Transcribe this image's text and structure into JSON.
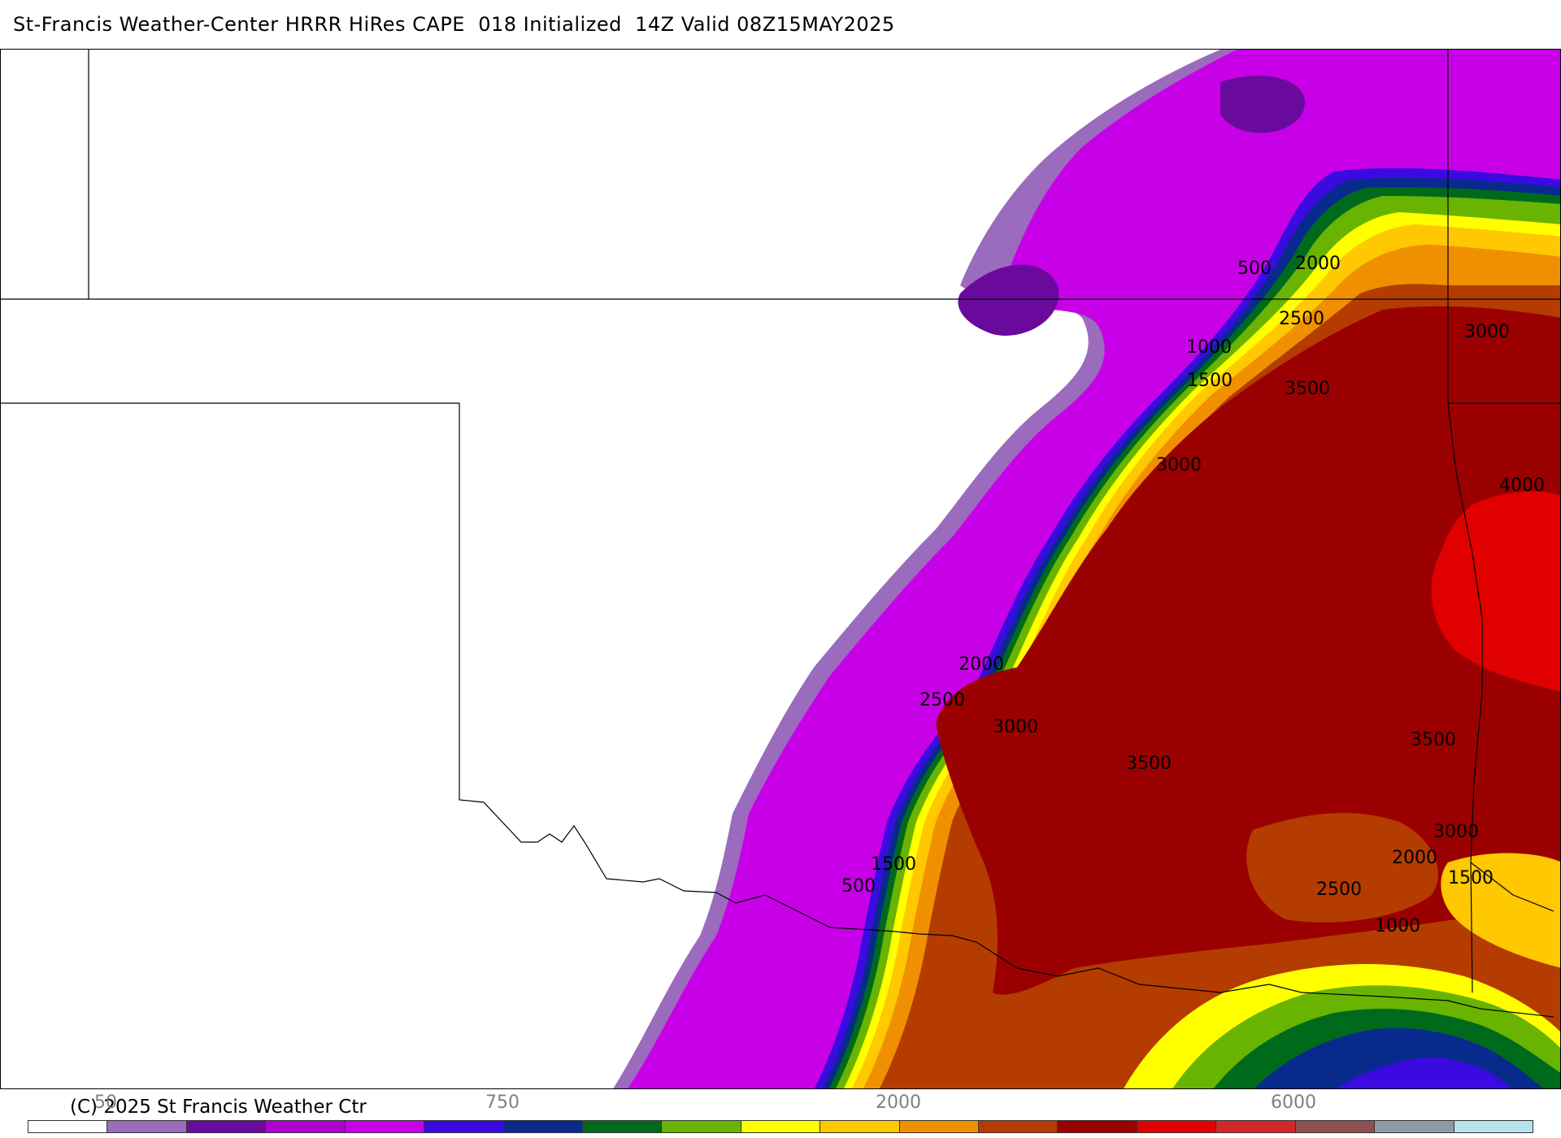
{
  "title": "St-Francis Weather-Center HRRR HiRes CAPE  018 Initialized  14Z Valid 08Z15MAY2025",
  "copyright": "(C) 2025 St Francis Weather Ctr",
  "map": {
    "contour_labels": [
      "500",
      "1000",
      "1500",
      "2000",
      "2500",
      "3000",
      "3500",
      "4000"
    ]
  },
  "colorbar": {
    "tick_labels": [
      "50",
      "750",
      "2000",
      "6000"
    ],
    "colors": [
      "#ffffff",
      "#9b6bbd",
      "#6a0a9c",
      "#b000d0",
      "#c800e8",
      "#3a0ae0",
      "#082a8c",
      "#006a1c",
      "#68b400",
      "#ffff00",
      "#ffc800",
      "#f09000",
      "#b43c00",
      "#9b0000",
      "#e00000",
      "#d42828",
      "#8c5050",
      "#8c9ca6",
      "#b4e4ec"
    ]
  }
}
